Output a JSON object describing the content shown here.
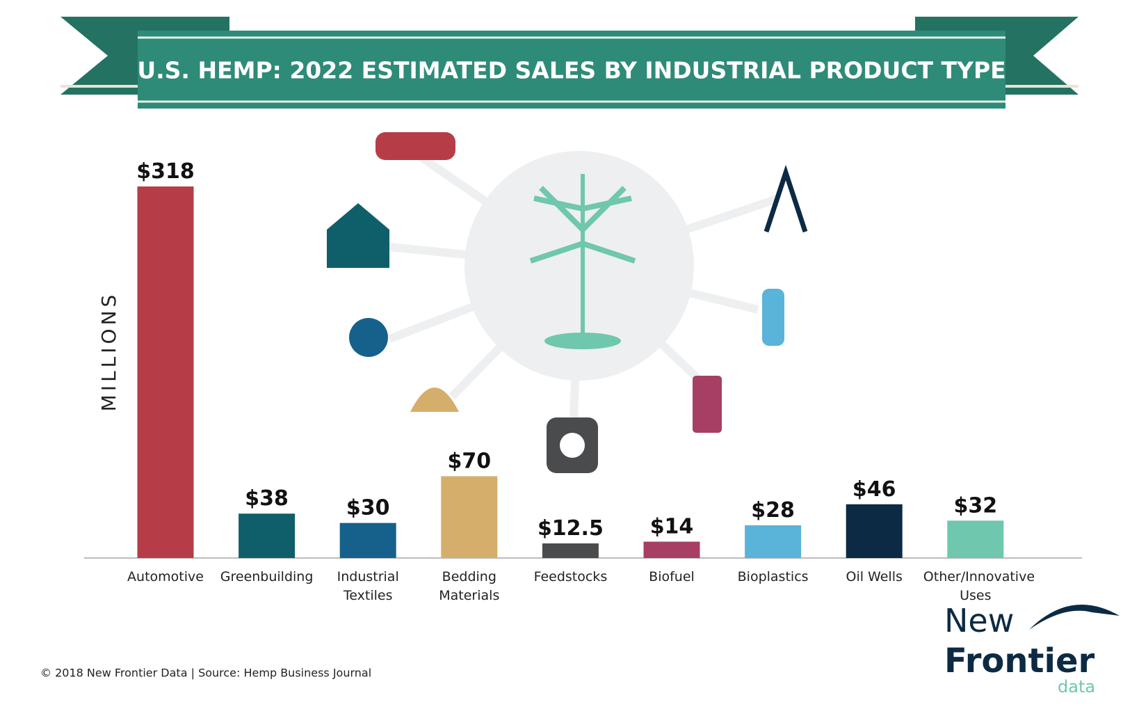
{
  "chart_data": {
    "type": "bar",
    "title": "U.S. HEMP: 2022 ESTIMATED SALES BY INDUSTRIAL PRODUCT TYPE",
    "y_label": "MILLIONS",
    "categories": [
      "Automotive",
      "Greenbuilding",
      "Industrial Textiles",
      "Bedding Materials",
      "Feedstocks",
      "Biofuel",
      "Bioplastics",
      "Oil Wells",
      "Other/Innovative Uses"
    ],
    "values": [
      318,
      38,
      30,
      70,
      12.5,
      14,
      28,
      46,
      32
    ],
    "value_labels": [
      "$318",
      "$38",
      "$30",
      "$70",
      "$12.5",
      "$14",
      "$28",
      "$46",
      "$32"
    ],
    "colors": [
      "#b63d47",
      "#0f5f6b",
      "#15618c",
      "#d6ae6b",
      "#4a4b4d",
      "#a63f63",
      "#5ab3d8",
      "#0c2a44",
      "#6fc7ad"
    ]
  },
  "footer": "© 2018  New Frontier Data | Source: Hemp Business Journal",
  "logo": {
    "line1": "New",
    "line2": "Frontier",
    "line3": "data"
  }
}
